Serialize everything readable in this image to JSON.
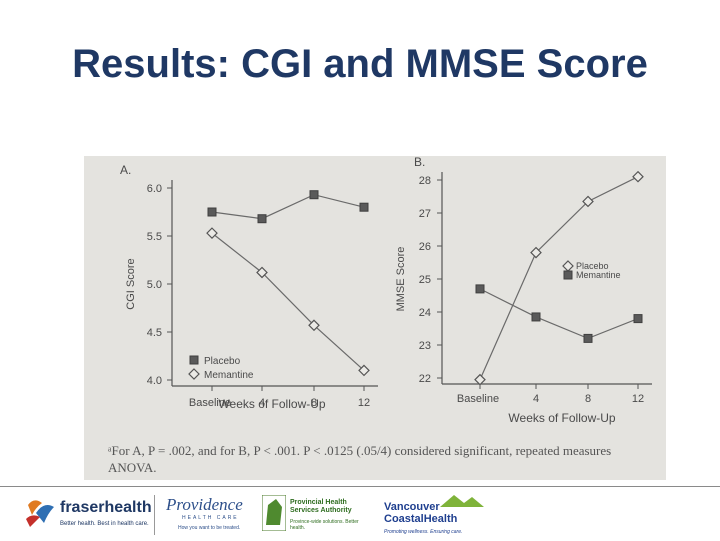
{
  "slide": {
    "title": "Results: CGI and MMSE Score"
  },
  "chart_data": [
    {
      "type": "line",
      "panel_label": "A.",
      "ylabel": "CGI Score",
      "xlabel": "Weeks of Follow-Up",
      "categories": [
        "Baseline",
        "4",
        "8",
        "12"
      ],
      "ylim": [
        4.0,
        6.0
      ],
      "yticks": [
        "4.0",
        "4.5",
        "5.0",
        "5.5",
        "6.0"
      ],
      "legend_position": "bottom-left",
      "series": [
        {
          "name": "Placebo",
          "marker": "square",
          "values": [
            5.75,
            5.68,
            5.93,
            5.8
          ]
        },
        {
          "name": "Memantine",
          "marker": "diamond",
          "values": [
            5.53,
            5.12,
            4.57,
            4.1
          ]
        }
      ]
    },
    {
      "type": "line",
      "panel_label": "B.",
      "ylabel": "MMSE Score",
      "xlabel": "Weeks of Follow-Up",
      "categories": [
        "Baseline",
        "4",
        "8",
        "12"
      ],
      "ylim": [
        22,
        28
      ],
      "yticks": [
        "22",
        "23",
        "24",
        "25",
        "26",
        "27",
        "28"
      ],
      "legend_position": "top-right",
      "series": [
        {
          "name": "Placebo",
          "marker": "diamond",
          "values": [
            21.95,
            25.8,
            27.35,
            28.1
          ]
        },
        {
          "name": "Memantine",
          "marker": "square",
          "values": [
            24.7,
            23.85,
            23.2,
            23.8
          ]
        }
      ]
    }
  ],
  "footnote": "ᵃFor A, P = .002, and for B, P < .001. P < .0125 (.05/4) considered significant, repeated measures ANOVA.",
  "footer": {
    "logos": [
      {
        "name": "fraserhealth",
        "tagline": "Better health. Best in health care."
      },
      {
        "name": "Providence",
        "sub": "HEALTH CARE",
        "tagline": "How you want to be treated."
      },
      {
        "name": "Provincial Health Services Authority",
        "tagline": "Province-wide solutions. Better health."
      },
      {
        "name": "Vancouver CoastalHealth",
        "tagline": "Promoting wellness. Ensuring care."
      }
    ]
  }
}
